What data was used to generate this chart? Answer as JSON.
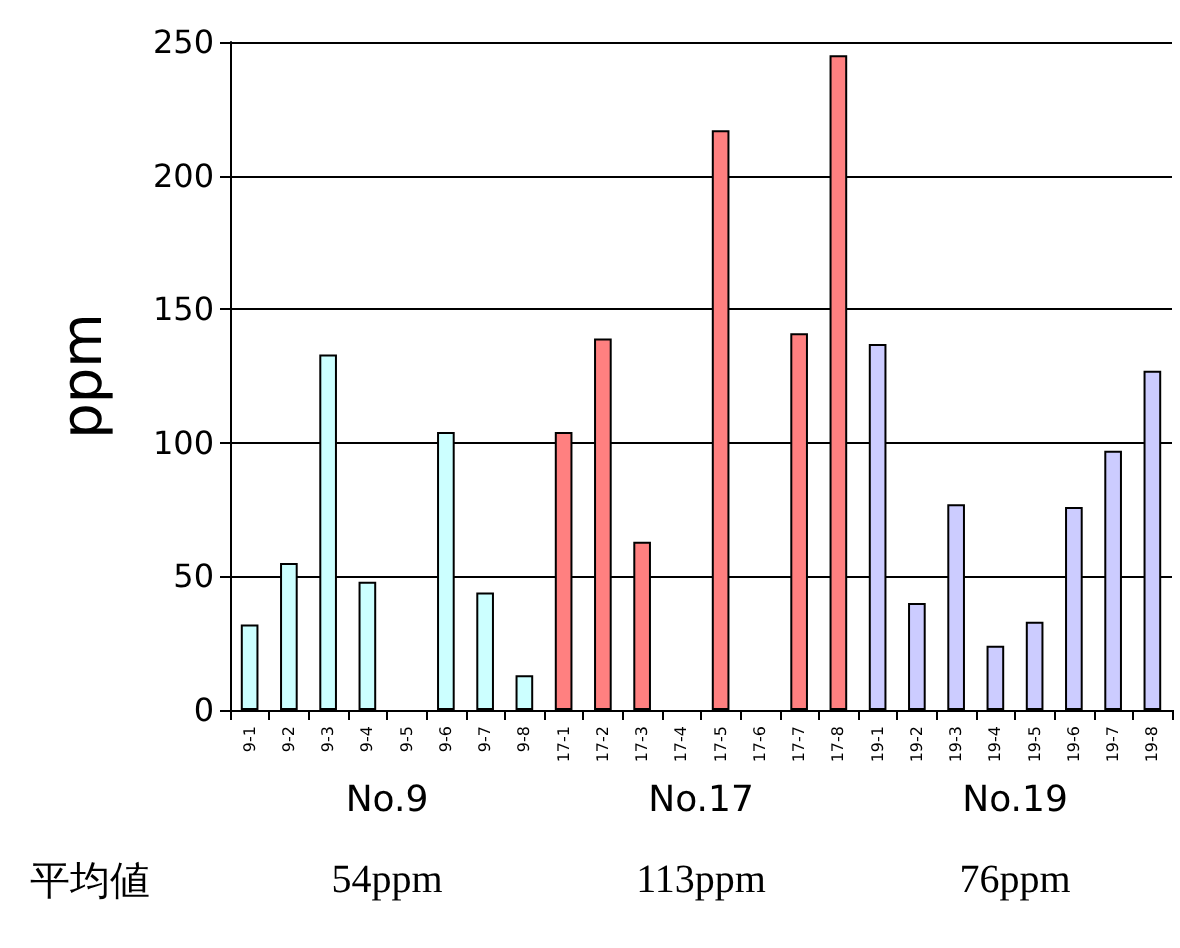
{
  "chart_data": {
    "type": "bar",
    "ylabel": "ppm",
    "categories": [
      "9-1",
      "9-2",
      "9-3",
      "9-4",
      "9-5",
      "9-6",
      "9-7",
      "9-8",
      "17-1",
      "17-2",
      "17-3",
      "17-4",
      "17-5",
      "17-6",
      "17-7",
      "17-8",
      "19-1",
      "19-2",
      "19-3",
      "19-4",
      "19-5",
      "19-6",
      "19-7",
      "19-8"
    ],
    "values": [
      32,
      55,
      133,
      48,
      null,
      104,
      44,
      13,
      104,
      139,
      63,
      null,
      217,
      null,
      141,
      245,
      137,
      40,
      77,
      24,
      33,
      76,
      97,
      127
    ],
    "colors": [
      "#ccffff",
      "#ccffff",
      "#ccffff",
      "#ccffff",
      "#ccffff",
      "#ccffff",
      "#ccffff",
      "#ccffff",
      "#ff8080",
      "#ff8080",
      "#ff8080",
      "#ff8080",
      "#ff8080",
      "#ff8080",
      "#ff8080",
      "#ff8080",
      "#ccccff",
      "#ccccff",
      "#ccccff",
      "#ccccff",
      "#ccccff",
      "#ccccff",
      "#ccccff",
      "#ccccff"
    ],
    "ylim": [
      0,
      250
    ],
    "yticks": [
      0,
      50,
      100,
      150,
      200,
      250
    ],
    "grid": "y",
    "annotations": [
      "No.9",
      "No.17",
      "No.19",
      "平均値",
      "54ppm",
      "113ppm",
      "76ppm"
    ]
  }
}
